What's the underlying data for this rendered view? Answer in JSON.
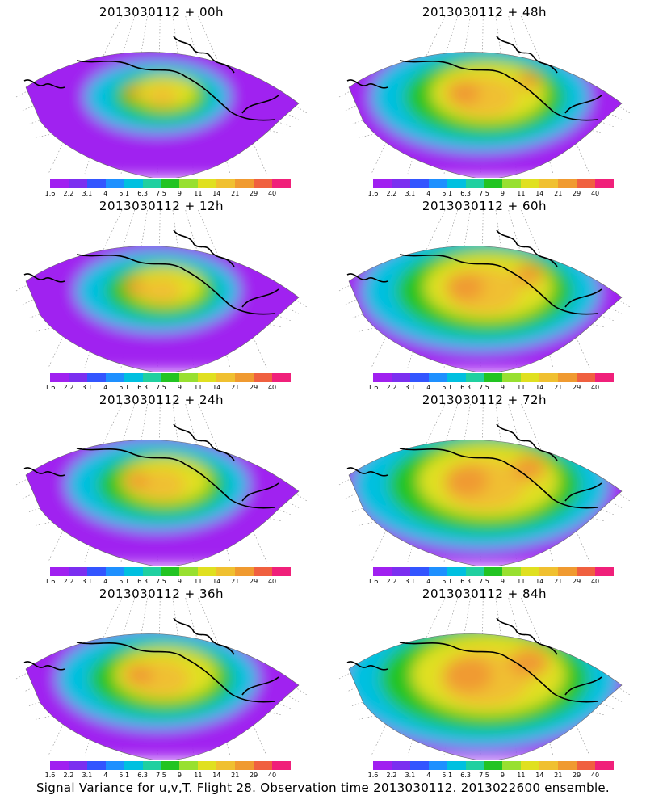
{
  "panels": [
    {
      "title": "2013030112 + 00h",
      "lead": 0
    },
    {
      "title": "2013030112 + 48h",
      "lead": 48
    },
    {
      "title": "2013030112 + 12h",
      "lead": 12
    },
    {
      "title": "2013030112 + 60h",
      "lead": 60
    },
    {
      "title": "2013030112 + 24h",
      "lead": 24
    },
    {
      "title": "2013030112 + 72h",
      "lead": 72
    },
    {
      "title": "2013030112 + 36h",
      "lead": 36
    },
    {
      "title": "2013030112 + 84h",
      "lead": 84
    }
  ],
  "colorbar": {
    "labels": [
      "1.6",
      "2.2",
      "3.1",
      "4",
      "5.1",
      "6.3",
      "7.5",
      "9",
      "11",
      "14",
      "21",
      "29",
      "40"
    ],
    "colors": [
      "#a020f0",
      "#7b2ff0",
      "#3355ff",
      "#1e90ff",
      "#00c0e0",
      "#20d0a0",
      "#22c422",
      "#98e030",
      "#e0e020",
      "#f0c030",
      "#f09a30",
      "#f06040",
      "#f0207a"
    ]
  },
  "footer": "Signal Variance for u,v,T. Flight 28. Observation time 2013030112. 2013022600 ensemble."
}
